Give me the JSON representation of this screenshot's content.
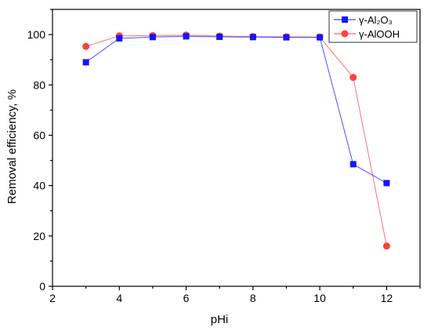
{
  "chart_data": {
    "type": "line",
    "title": "",
    "xlabel": "pHi",
    "ylabel": "Removal efficiency, %",
    "xlim": [
      2,
      13
    ],
    "ylim": [
      0,
      110
    ],
    "xticks": [
      2,
      4,
      6,
      8,
      10,
      12
    ],
    "yticks": [
      0,
      20,
      40,
      60,
      80,
      100
    ],
    "grid": false,
    "legend_position": "top-right",
    "series": [
      {
        "name": "γ-Al₂O₃",
        "marker": "square",
        "color": "#1414ff",
        "x": [
          3,
          4,
          5,
          6,
          7,
          8,
          9,
          10,
          11,
          12
        ],
        "y": [
          89,
          98.5,
          99,
          99.3,
          99.1,
          99,
          98.9,
          98.9,
          48.5,
          41
        ]
      },
      {
        "name": "γ-AlOOH",
        "marker": "circle",
        "color": "#ff4040",
        "x": [
          3,
          4,
          5,
          6,
          7,
          8,
          9,
          10,
          11,
          12
        ],
        "y": [
          95.3,
          99.5,
          99.6,
          99.8,
          99.4,
          99.2,
          99.1,
          99,
          83,
          16
        ]
      }
    ]
  }
}
